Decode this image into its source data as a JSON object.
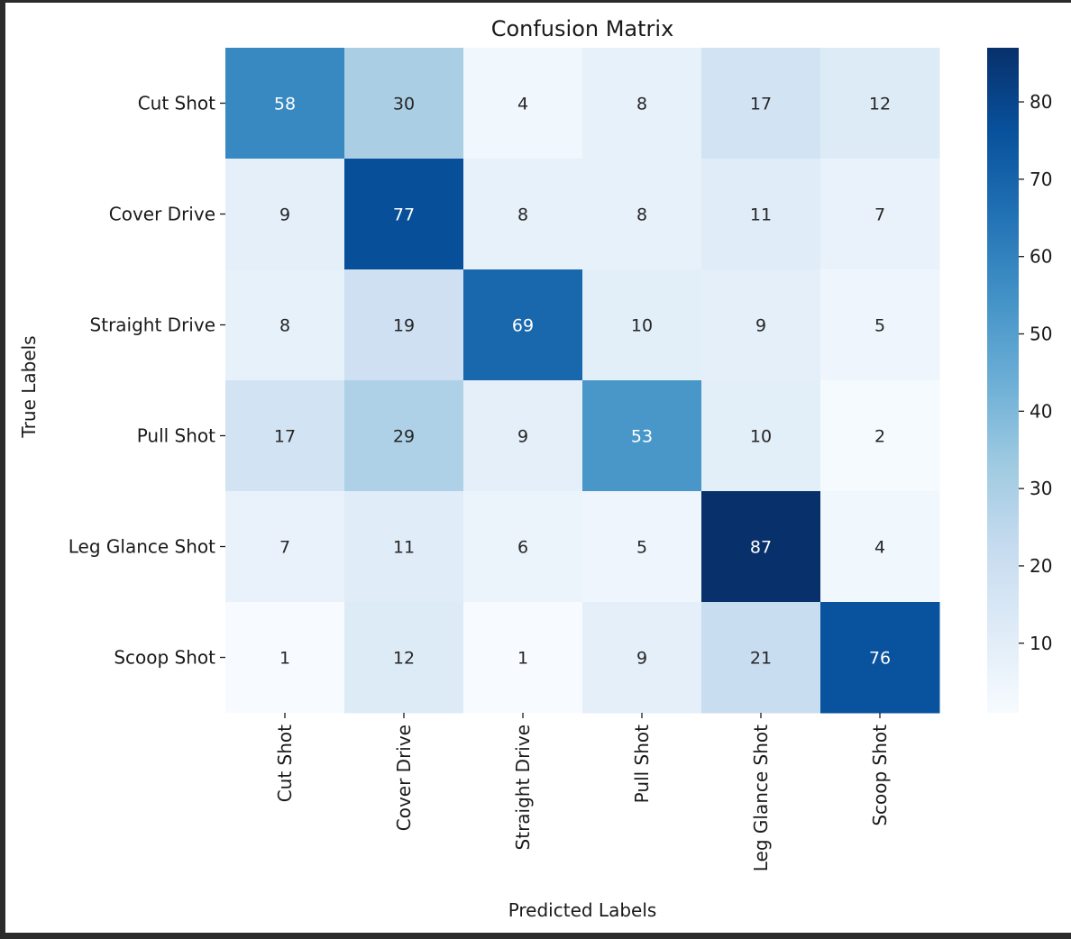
{
  "chart_data": {
    "type": "heatmap",
    "title": "Confusion Matrix",
    "xlabel": "Predicted Labels",
    "ylabel": "True Labels",
    "x_categories": [
      "Cut Shot",
      "Cover Drive",
      "Straight Drive",
      "Pull Shot",
      "Leg Glance Shot",
      "Scoop Shot"
    ],
    "y_categories": [
      "Cut Shot",
      "Cover Drive",
      "Straight Drive",
      "Pull Shot",
      "Leg Glance Shot",
      "Scoop Shot"
    ],
    "values": [
      [
        58,
        30,
        4,
        8,
        17,
        12
      ],
      [
        9,
        77,
        8,
        8,
        11,
        7
      ],
      [
        8,
        19,
        69,
        10,
        9,
        5
      ],
      [
        17,
        29,
        9,
        53,
        10,
        2
      ],
      [
        7,
        11,
        6,
        5,
        87,
        4
      ],
      [
        1,
        12,
        1,
        9,
        21,
        76
      ]
    ],
    "colormap": "Blues",
    "value_range": [
      1,
      87
    ],
    "colorbar_ticks": [
      10,
      20,
      30,
      40,
      50,
      60,
      70,
      80
    ],
    "annotations_shown": true
  },
  "colors": {
    "background": "#ffffff",
    "outer_frame": "#2b2b2b",
    "text": "#1a1a1a"
  }
}
